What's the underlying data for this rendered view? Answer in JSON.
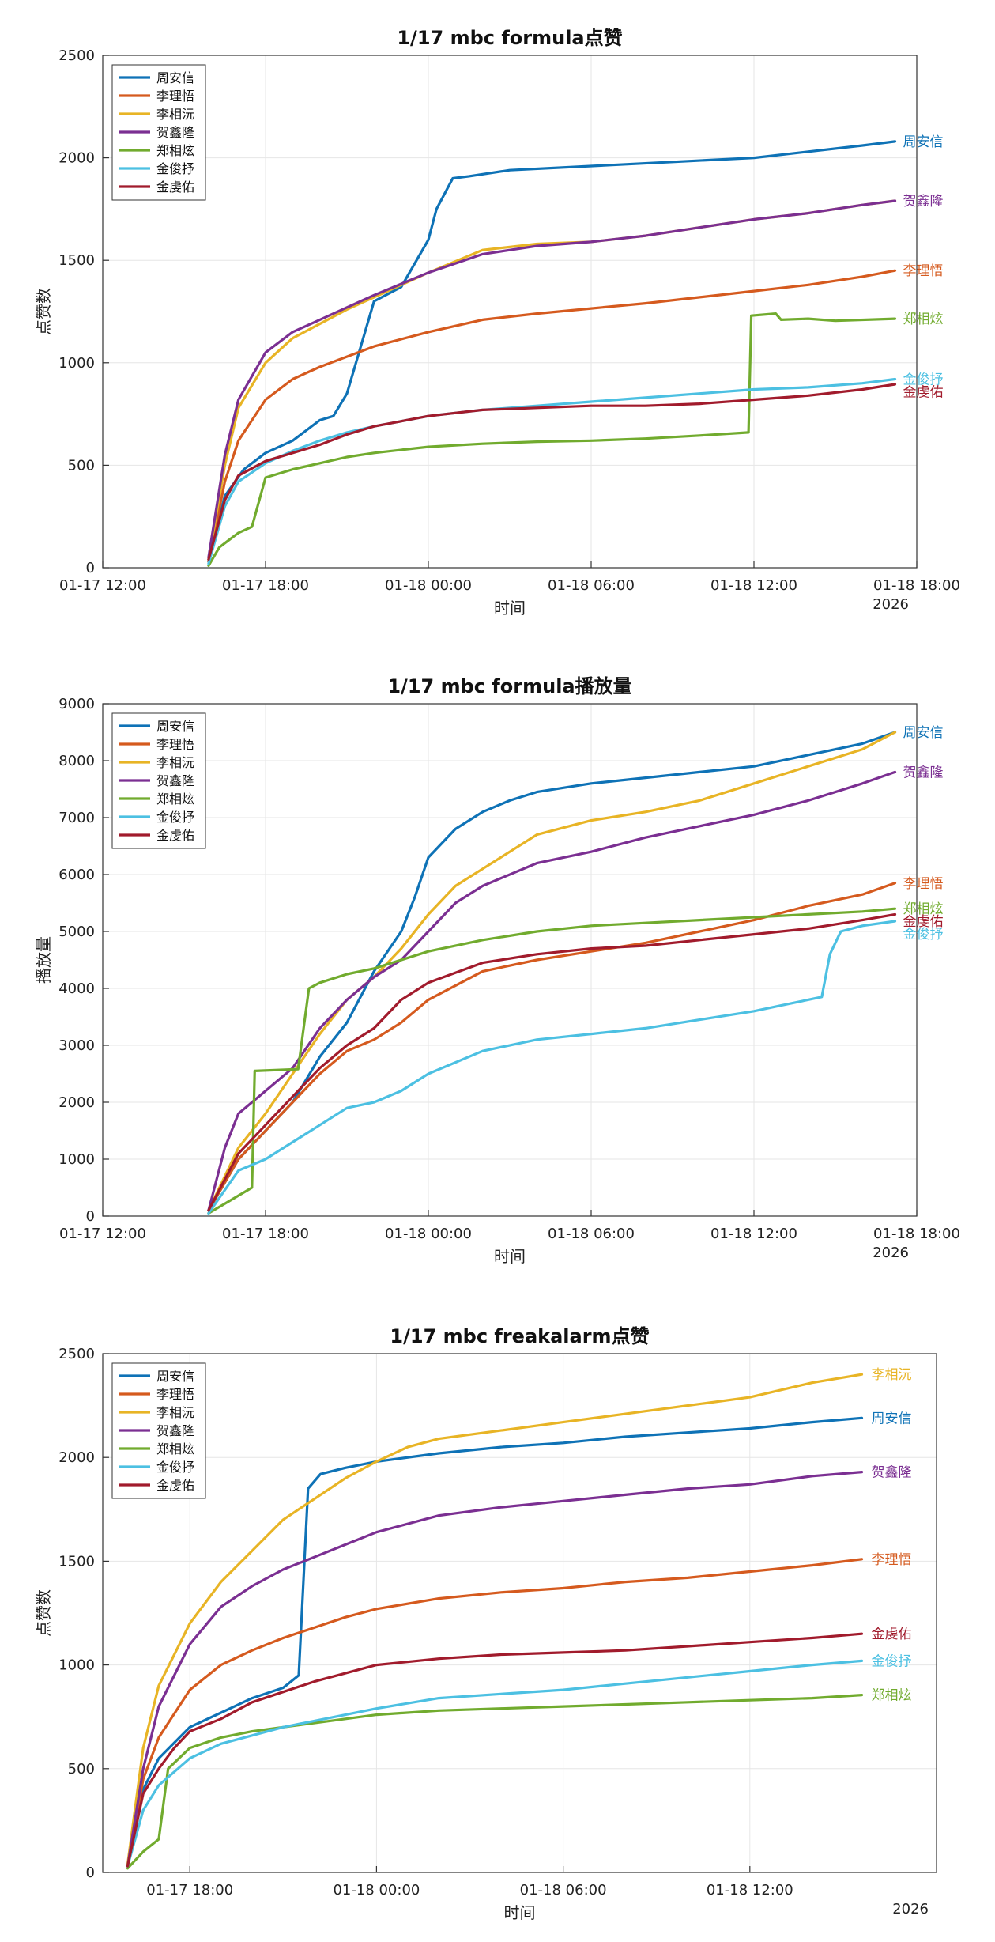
{
  "colors": {
    "周安信": "#0e72b6",
    "李理悟": "#d55a1e",
    "李相沅": "#e8b425",
    "贺鑫隆": "#7b2f92",
    "郑相炫": "#71ab2e",
    "金俊抒": "#4cc0e2",
    "金虔佑": "#a11b2c"
  },
  "chart_data": [
    {
      "type": "line",
      "title": "1/17 mbc formula点赞",
      "xlabel": "时间",
      "ylabel": "点赞数",
      "year_label": "2026",
      "x_unit": "hours since 01-17 12:00",
      "xlim": [
        0,
        30
      ],
      "ylim": [
        0,
        2500
      ],
      "x_ticks": [
        0,
        6,
        12,
        18,
        24,
        30
      ],
      "x_tick_labels": [
        "01-17 12:00",
        "01-17 18:00",
        "01-18 00:00",
        "01-18 06:00",
        "01-18 12:00",
        "01-18 18:00"
      ],
      "y_ticks": [
        0,
        500,
        1000,
        1500,
        2000,
        2500
      ],
      "legend_position": "top-left",
      "series": [
        {
          "name": "周安信",
          "x": [
            3.9,
            4.5,
            5.2,
            6.0,
            7.0,
            8.0,
            8.5,
            9.0,
            10.0,
            11.0,
            12.0,
            12.3,
            12.9,
            13.5,
            15,
            18,
            21,
            24,
            26,
            28,
            29.2
          ],
          "y": [
            30,
            350,
            480,
            560,
            620,
            720,
            740,
            850,
            1300,
            1370,
            1600,
            1750,
            1900,
            1910,
            1940,
            1960,
            1980,
            2000,
            2030,
            2060,
            2080
          ]
        },
        {
          "name": "李理悟",
          "x": [
            3.9,
            4.5,
            5.0,
            6.0,
            7.0,
            8.0,
            10.0,
            12.0,
            14.0,
            16.0,
            18.0,
            20.0,
            22.0,
            24.0,
            26.0,
            28.0,
            29.2
          ],
          "y": [
            30,
            420,
            620,
            820,
            920,
            980,
            1080,
            1150,
            1210,
            1240,
            1265,
            1290,
            1320,
            1350,
            1380,
            1420,
            1450
          ]
        },
        {
          "name": "李相沅",
          "x": [
            3.9,
            4.5,
            5.0,
            6.0,
            7.0,
            8.0,
            9.0,
            10.0,
            12.0,
            14.0,
            16.0,
            18.0,
            20.0,
            22.0,
            24.0,
            26.0,
            28.0,
            29.2
          ],
          "y": [
            40,
            500,
            780,
            1000,
            1120,
            1190,
            1260,
            1320,
            1440,
            1550,
            1580,
            1590,
            1620,
            1660,
            1700,
            1730,
            1770,
            1790
          ]
        },
        {
          "name": "贺鑫隆",
          "x": [
            3.9,
            4.5,
            5.0,
            6.0,
            7.0,
            8.0,
            9.0,
            10.0,
            12.0,
            14.0,
            16.0,
            18.0,
            20.0,
            22.0,
            24.0,
            26.0,
            28.0,
            29.2
          ],
          "y": [
            50,
            550,
            820,
            1050,
            1150,
            1210,
            1270,
            1330,
            1440,
            1530,
            1570,
            1590,
            1620,
            1660,
            1700,
            1730,
            1770,
            1790
          ]
        },
        {
          "name": "郑相炫",
          "x": [
            3.9,
            4.3,
            4.6,
            5.0,
            5.5,
            6.0,
            7.0,
            8.0,
            9.0,
            10.0,
            12.0,
            14.0,
            16.0,
            18.0,
            20.0,
            22.0,
            23.8,
            23.9,
            24.8,
            25,
            26,
            27,
            29.2
          ],
          "y": [
            10,
            100,
            130,
            170,
            200,
            440,
            480,
            510,
            540,
            560,
            590,
            605,
            615,
            620,
            630,
            645,
            660,
            1230,
            1240,
            1210,
            1215,
            1205,
            1215
          ]
        },
        {
          "name": "金俊抒",
          "x": [
            3.9,
            4.5,
            5.0,
            6.0,
            7.0,
            8.0,
            9.0,
            10.0,
            12.0,
            14.0,
            16.0,
            18.0,
            20.0,
            22.0,
            24.0,
            26.0,
            28.0,
            29.2
          ],
          "y": [
            20,
            300,
            420,
            510,
            570,
            620,
            660,
            690,
            740,
            770,
            790,
            810,
            830,
            850,
            870,
            880,
            900,
            920
          ]
        },
        {
          "name": "金虔佑",
          "x": [
            3.9,
            4.5,
            5.0,
            6.0,
            7.0,
            8.0,
            9.0,
            10.0,
            12.0,
            14.0,
            16.0,
            18.0,
            20.0,
            22.0,
            24.0,
            26.0,
            28.0,
            29.2
          ],
          "y": [
            40,
            330,
            450,
            520,
            560,
            600,
            650,
            690,
            740,
            770,
            780,
            790,
            790,
            800,
            820,
            840,
            870,
            895
          ]
        }
      ],
      "end_labels": [
        "周安信",
        "贺鑫隆",
        "李理悟",
        "郑相炫",
        "金俊抒",
        "金虔佑"
      ]
    },
    {
      "type": "line",
      "title": "1/17 mbc formula播放量",
      "xlabel": "时间",
      "ylabel": "播放量",
      "year_label": "2026",
      "x_unit": "hours since 01-17 12:00",
      "xlim": [
        0,
        30
      ],
      "ylim": [
        0,
        9000
      ],
      "x_ticks": [
        0,
        6,
        12,
        18,
        24,
        30
      ],
      "x_tick_labels": [
        "01-17 12:00",
        "01-17 18:00",
        "01-18 00:00",
        "01-18 06:00",
        "01-18 12:00",
        "01-18 18:00"
      ],
      "y_ticks": [
        0,
        1000,
        2000,
        3000,
        4000,
        5000,
        6000,
        7000,
        8000,
        9000
      ],
      "legend_position": "top-left",
      "series": [
        {
          "name": "周安信",
          "x": [
            3.9,
            5.0,
            6.0,
            7.0,
            8.0,
            9.0,
            10.0,
            11.0,
            11.5,
            12.0,
            13.0,
            14.0,
            15.0,
            16.0,
            18.0,
            20.0,
            22.0,
            24.0,
            26.0,
            28.0,
            29.2
          ],
          "y": [
            100,
            1000,
            1500,
            2000,
            2800,
            3400,
            4300,
            5000,
            5600,
            6300,
            6800,
            7100,
            7300,
            7450,
            7600,
            7700,
            7800,
            7900,
            8100,
            8300,
            8500
          ]
        },
        {
          "name": "李理悟",
          "x": [
            3.9,
            5.0,
            6.0,
            7.0,
            8.0,
            9.0,
            10.0,
            11.0,
            12.0,
            14.0,
            16.0,
            18.0,
            20.0,
            22.0,
            24.0,
            26.0,
            28.0,
            29.2
          ],
          "y": [
            100,
            1000,
            1500,
            2000,
            2500,
            2900,
            3100,
            3400,
            3800,
            4300,
            4500,
            4650,
            4800,
            5000,
            5200,
            5450,
            5650,
            5850
          ]
        },
        {
          "name": "李相沅",
          "x": [
            3.9,
            5.0,
            6.0,
            7.0,
            8.0,
            9.0,
            10.0,
            11.0,
            12.0,
            13.0,
            14.0,
            15.0,
            16.0,
            18.0,
            20.0,
            22.0,
            24.0,
            26.0,
            28.0,
            29.2
          ],
          "y": [
            100,
            1200,
            1800,
            2500,
            3200,
            3800,
            4200,
            4700,
            5300,
            5800,
            6100,
            6400,
            6700,
            6950,
            7100,
            7300,
            7600,
            7900,
            8200,
            8500
          ]
        },
        {
          "name": "贺鑫隆",
          "x": [
            3.9,
            4.5,
            5.0,
            6.0,
            7.0,
            8.0,
            9.0,
            10.0,
            11.0,
            12.0,
            13.0,
            14.0,
            16.0,
            18.0,
            20.0,
            22.0,
            24.0,
            26.0,
            28.0,
            29.2
          ],
          "y": [
            100,
            1200,
            1800,
            2200,
            2600,
            3300,
            3800,
            4200,
            4500,
            5000,
            5500,
            5800,
            6200,
            6400,
            6650,
            6850,
            7050,
            7300,
            7600,
            7800
          ]
        },
        {
          "name": "郑相炫",
          "x": [
            3.9,
            5.5,
            5.6,
            7.2,
            7.6,
            8.0,
            9.0,
            10.0,
            12.0,
            14.0,
            16.0,
            18.0,
            20.0,
            22.0,
            24.0,
            26.0,
            28.0,
            29.2
          ],
          "y": [
            50,
            500,
            2550,
            2580,
            4000,
            4100,
            4250,
            4350,
            4650,
            4850,
            5000,
            5100,
            5150,
            5200,
            5250,
            5300,
            5350,
            5400
          ]
        },
        {
          "name": "金俊抒",
          "x": [
            3.9,
            5.0,
            6.0,
            7.0,
            8.0,
            9.0,
            10.0,
            11.0,
            12.0,
            14.0,
            16.0,
            18.0,
            20.0,
            22.0,
            24.0,
            25.0,
            26.5,
            26.8,
            27.2,
            28.0,
            29.2
          ],
          "y": [
            50,
            800,
            1000,
            1300,
            1600,
            1900,
            2000,
            2200,
            2500,
            2900,
            3100,
            3200,
            3300,
            3450,
            3600,
            3700,
            3850,
            4600,
            5000,
            5100,
            5180
          ]
        },
        {
          "name": "金虔佑",
          "x": [
            3.9,
            5.0,
            6.0,
            7.0,
            8.0,
            9.0,
            10.0,
            11.0,
            12.0,
            14.0,
            16.0,
            18.0,
            20.0,
            22.0,
            24.0,
            26.0,
            28.0,
            29.2
          ],
          "y": [
            100,
            1100,
            1600,
            2100,
            2600,
            3000,
            3300,
            3800,
            4100,
            4450,
            4600,
            4700,
            4750,
            4850,
            4950,
            5050,
            5200,
            5300
          ]
        }
      ],
      "end_labels": [
        "周安信",
        "贺鑫隆",
        "李理悟",
        "郑相炫",
        "金虔佑",
        "金俊抒"
      ]
    },
    {
      "type": "line",
      "title": "1/17 mbc freakalarm点赞",
      "xlabel": "时间",
      "ylabel": "点赞数",
      "year_label": "2026",
      "x_unit": "hours since 01-17 12:00",
      "xlim": [
        3.2,
        30
      ],
      "ylim": [
        0,
        2500
      ],
      "x_ticks": [
        6,
        12,
        18,
        24
      ],
      "x_tick_labels": [
        "01-17 18:00",
        "01-18 00:00",
        "01-18 06:00",
        "01-18 12:00"
      ],
      "y_ticks": [
        0,
        500,
        1000,
        1500,
        2000,
        2500
      ],
      "legend_position": "top-left",
      "series": [
        {
          "name": "周安信",
          "x": [
            4.0,
            4.5,
            5.0,
            6.0,
            7.0,
            8.0,
            9.0,
            9.5,
            9.8,
            10.2,
            11.0,
            12.0,
            14.0,
            16.0,
            18.0,
            20.0,
            22.0,
            24.0,
            26.0,
            27.6
          ],
          "y": [
            30,
            400,
            550,
            700,
            770,
            840,
            890,
            950,
            1850,
            1920,
            1950,
            1980,
            2020,
            2050,
            2070,
            2100,
            2120,
            2140,
            2170,
            2190
          ]
        },
        {
          "name": "李理悟",
          "x": [
            4.0,
            4.5,
            5.0,
            6.0,
            7.0,
            8.0,
            9.0,
            10.0,
            11.0,
            12.0,
            14.0,
            16.0,
            18.0,
            20.0,
            22.0,
            24.0,
            26.0,
            27.6
          ],
          "y": [
            30,
            450,
            650,
            880,
            1000,
            1070,
            1130,
            1180,
            1230,
            1270,
            1320,
            1350,
            1370,
            1400,
            1420,
            1450,
            1480,
            1510
          ]
        },
        {
          "name": "李相沅",
          "x": [
            4.0,
            4.5,
            5.0,
            6.0,
            7.0,
            8.0,
            9.0,
            10.0,
            11.0,
            12.0,
            13.0,
            14.0,
            16.0,
            18.0,
            20.0,
            22.0,
            24.0,
            26.0,
            27.6
          ],
          "y": [
            40,
            600,
            900,
            1200,
            1400,
            1550,
            1700,
            1800,
            1900,
            1980,
            2050,
            2090,
            2130,
            2170,
            2210,
            2250,
            2290,
            2360,
            2400
          ]
        },
        {
          "name": "贺鑫隆",
          "x": [
            4.0,
            4.5,
            5.0,
            6.0,
            7.0,
            8.0,
            9.0,
            10.0,
            11.0,
            12.0,
            14.0,
            16.0,
            18.0,
            20.0,
            22.0,
            24.0,
            26.0,
            27.6
          ],
          "y": [
            30,
            500,
            800,
            1100,
            1280,
            1380,
            1460,
            1520,
            1580,
            1640,
            1720,
            1760,
            1790,
            1820,
            1850,
            1870,
            1910,
            1930
          ]
        },
        {
          "name": "郑相炫",
          "x": [
            4.0,
            4.5,
            5.0,
            5.3,
            6.0,
            7.0,
            8.0,
            9.0,
            10.0,
            11.0,
            12.0,
            14.0,
            16.0,
            18.0,
            20.0,
            22.0,
            24.0,
            26.0,
            27.6
          ],
          "y": [
            20,
            100,
            160,
            500,
            600,
            650,
            680,
            700,
            720,
            740,
            760,
            780,
            790,
            800,
            810,
            820,
            830,
            840,
            855
          ]
        },
        {
          "name": "金俊抒",
          "x": [
            4.0,
            4.5,
            5.0,
            6.0,
            7.0,
            8.0,
            9.0,
            10.0,
            11.0,
            12.0,
            14.0,
            16.0,
            18.0,
            20.0,
            22.0,
            24.0,
            26.0,
            27.6
          ],
          "y": [
            30,
            300,
            420,
            550,
            620,
            660,
            700,
            730,
            760,
            790,
            840,
            860,
            880,
            910,
            940,
            970,
            1000,
            1020
          ]
        },
        {
          "name": "金虔佑",
          "x": [
            4.0,
            4.5,
            5.0,
            5.5,
            6.0,
            7.0,
            8.0,
            9.0,
            10.0,
            11.0,
            12.0,
            14.0,
            16.0,
            18.0,
            20.0,
            22.0,
            24.0,
            26.0,
            27.6
          ],
          "y": [
            30,
            380,
            500,
            600,
            680,
            740,
            820,
            870,
            920,
            960,
            1000,
            1030,
            1050,
            1060,
            1070,
            1090,
            1110,
            1130,
            1150
          ]
        }
      ],
      "end_labels": [
        "李相沅",
        "周安信",
        "贺鑫隆",
        "李理悟",
        "金虔佑",
        "金俊抒",
        "郑相炫"
      ]
    }
  ]
}
